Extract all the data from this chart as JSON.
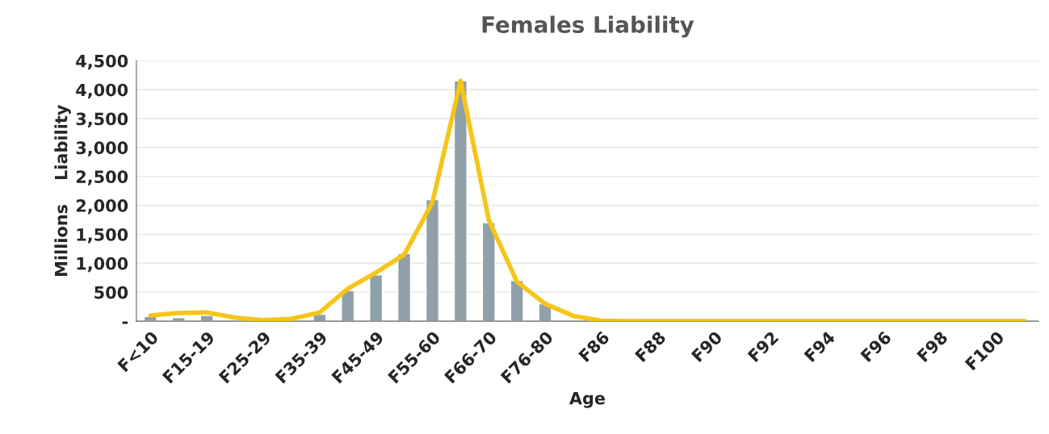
{
  "chart_data": {
    "type": "bar",
    "title": "Females Liability",
    "xlabel": "Age",
    "ylabel": "Millions    Liability",
    "categories": [
      "F<10",
      null,
      "F15-19",
      null,
      "F25-29",
      null,
      "F35-39",
      null,
      "F45-49",
      null,
      "F55-60",
      null,
      "F66-70",
      null,
      "F76-80",
      null,
      "F86",
      null,
      "F88",
      null,
      "F90",
      null,
      "F92",
      null,
      "F94",
      null,
      "F96",
      null,
      "F98",
      null,
      "F100",
      null
    ],
    "series": [
      {
        "color": "#8fa0a8",
        "values": [
          80,
          60,
          100,
          null,
          10,
          null,
          120,
          530,
          800,
          1170,
          2100,
          4150,
          1700,
          700,
          300,
          null,
          10,
          null,
          null,
          null,
          null,
          null,
          null,
          null,
          null,
          null,
          null,
          null,
          null,
          null,
          null,
          null
        ]
      },
      {
        "type": "line",
        "color": "#f5c518",
        "values": [
          100,
          140,
          150,
          60,
          20,
          40,
          150,
          560,
          840,
          1150,
          2050,
          4150,
          1750,
          680,
          300,
          90,
          10,
          0,
          0,
          0,
          0,
          0,
          0,
          0,
          0,
          0,
          0,
          0,
          0,
          0,
          0,
          0
        ]
      }
    ],
    "ylim": [
      0,
      4500
    ],
    "yticks": [
      {
        "value": 0,
        "label": "-"
      },
      500,
      {
        "value": 1000,
        "label": "1,000"
      },
      {
        "value": 1500,
        "label": "1,500"
      },
      {
        "value": 2000,
        "label": "2,000"
      },
      {
        "value": 2500,
        "label": "2,500"
      },
      {
        "value": 3000,
        "label": "3,000"
      },
      {
        "value": 3500,
        "label": "3,500"
      },
      {
        "value": 4000,
        "label": "4,000"
      },
      {
        "value": 4500,
        "label": "4,500"
      }
    ],
    "grid": "y",
    "legend": false,
    "marker": "none",
    "line_style": "solid"
  }
}
